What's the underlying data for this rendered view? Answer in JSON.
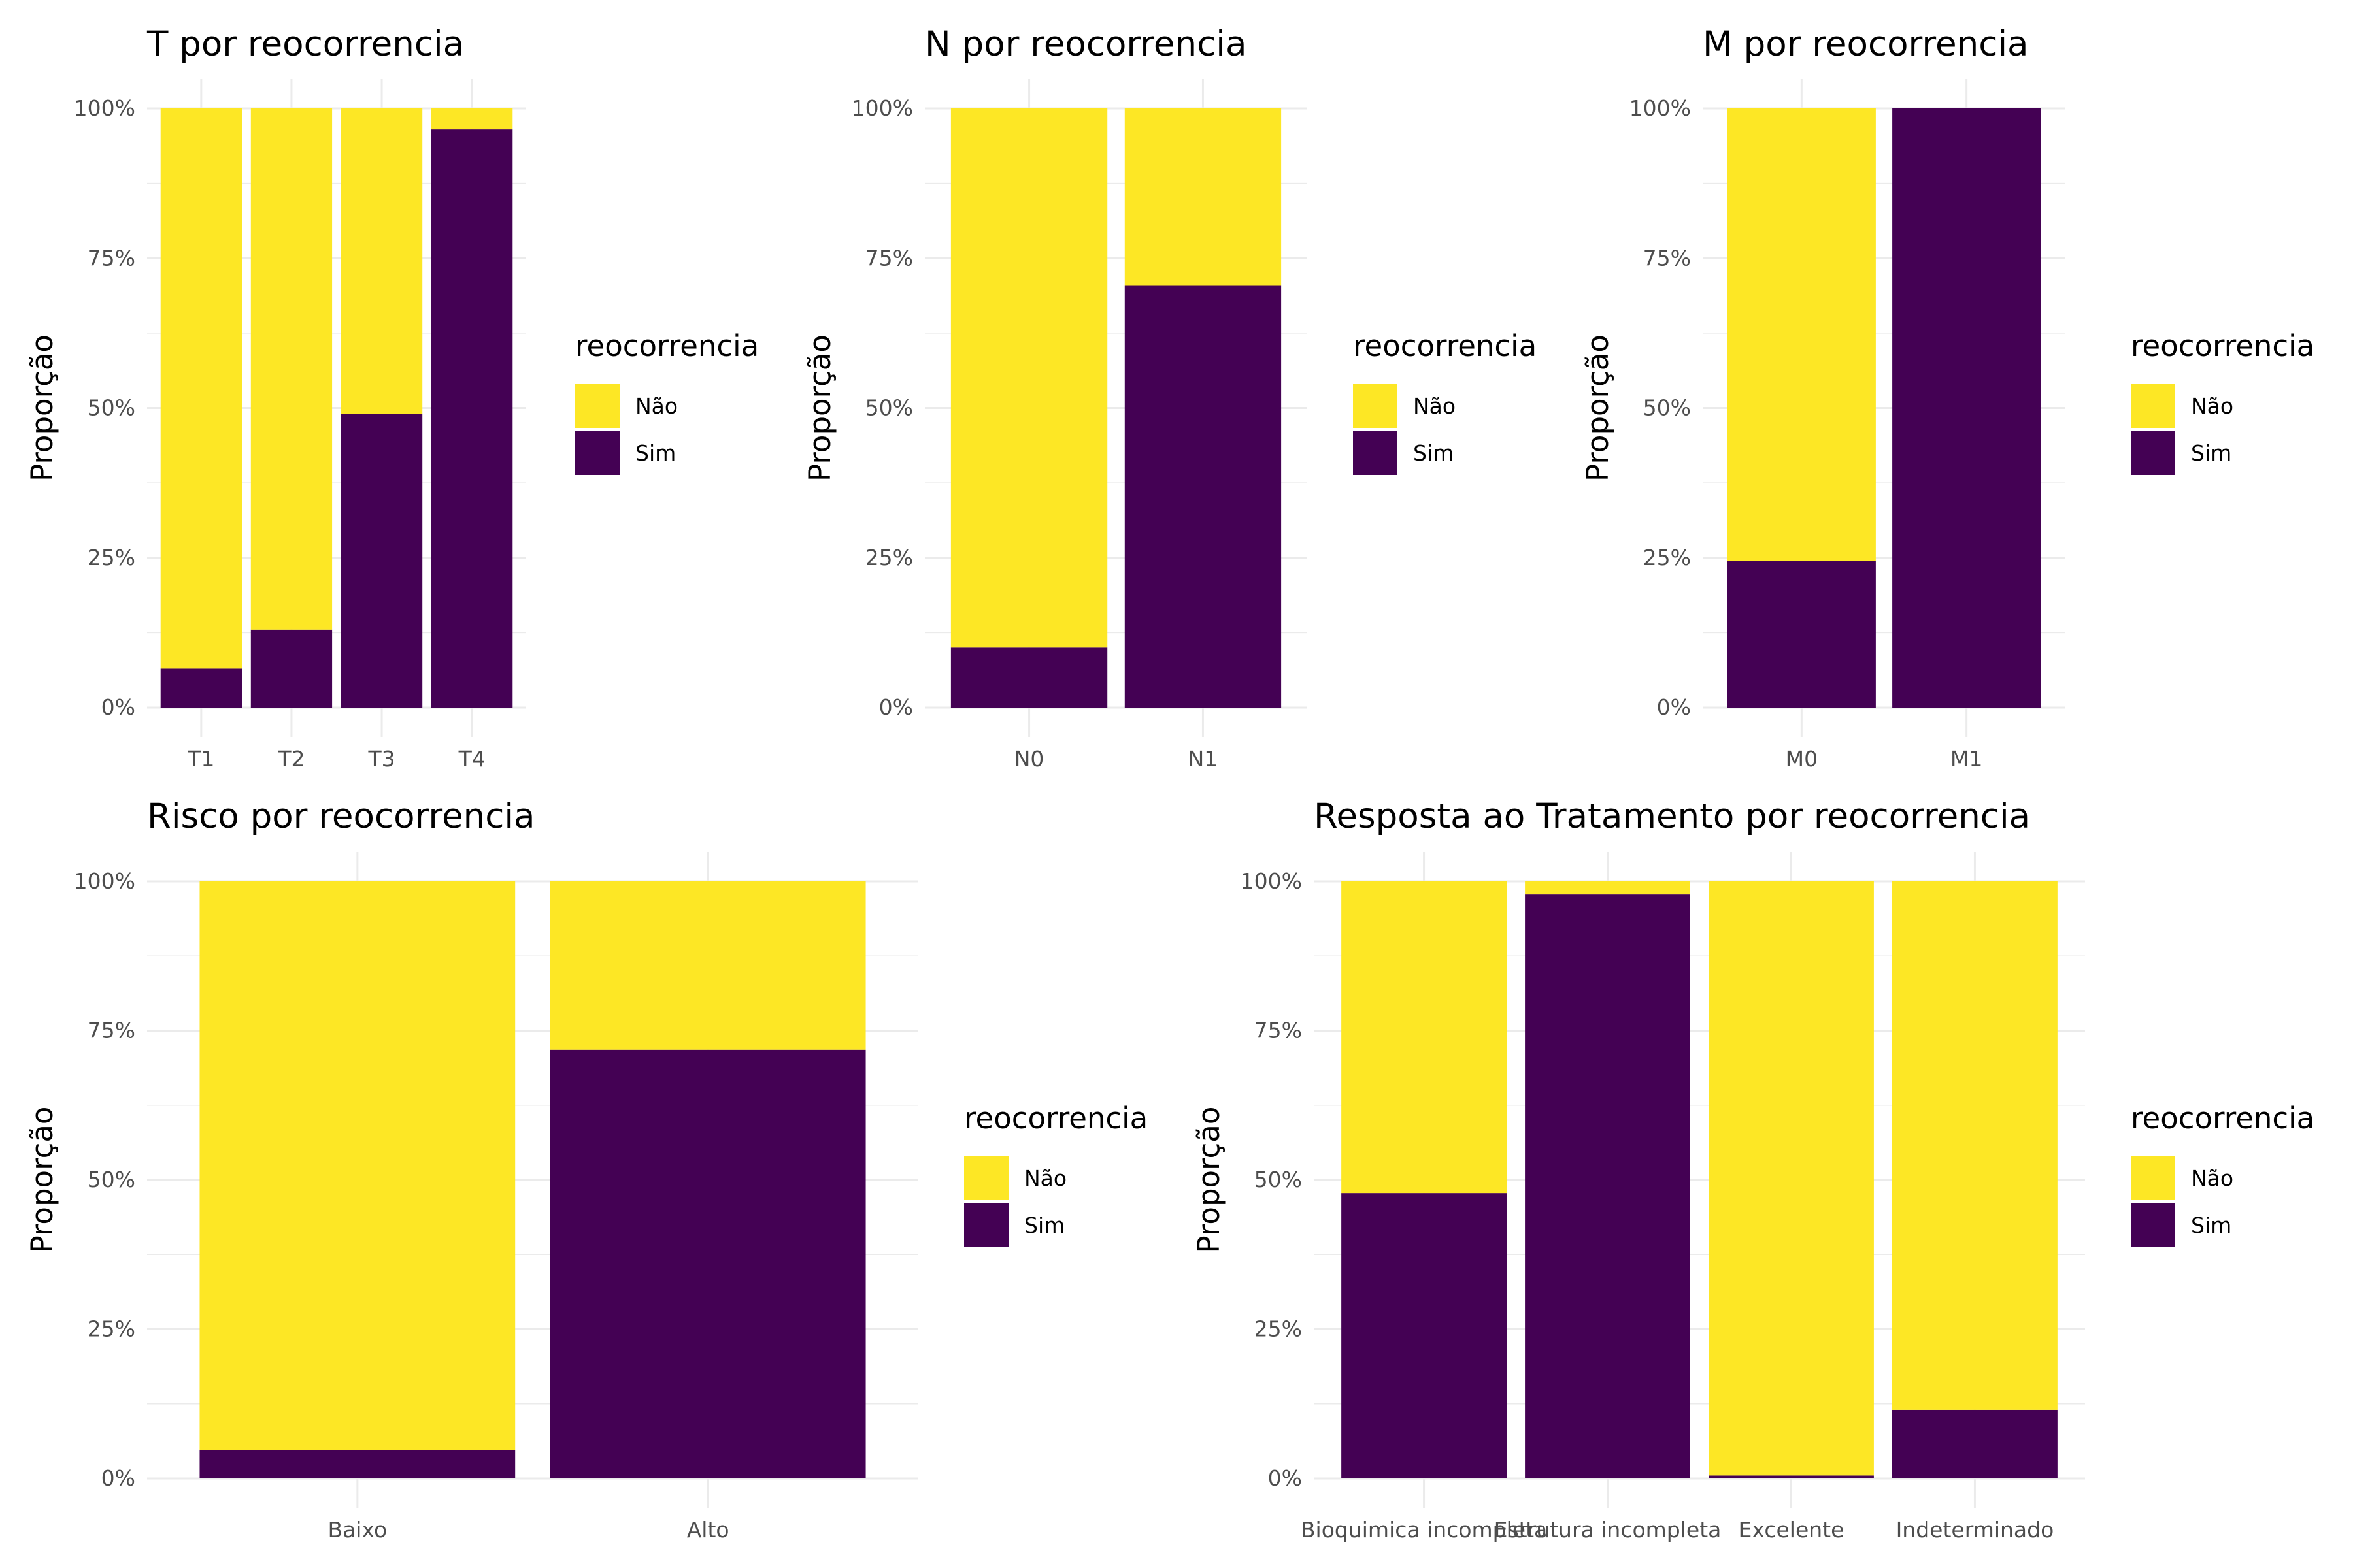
{
  "colors": {
    "Não": "#FDE725",
    "Sim": "#440154"
  },
  "legend": {
    "title": "reocorrencia",
    "items": [
      "Não",
      "Sim"
    ]
  },
  "y_axis": {
    "label": "Proporção",
    "ticks": [
      0,
      0.25,
      0.5,
      0.75,
      1
    ],
    "tick_labels": [
      "0%",
      "25%",
      "50%",
      "75%",
      "100%"
    ]
  },
  "chart_data": [
    {
      "type": "bar",
      "stacked": "fill",
      "title": "T por reocorrencia",
      "ylabel": "Proporção",
      "ylim": [
        0,
        1
      ],
      "categories": [
        "T1",
        "T2",
        "T3",
        "T4"
      ],
      "series": [
        {
          "name": "Sim",
          "values": [
            0.065,
            0.13,
            0.49,
            0.965
          ]
        },
        {
          "name": "Não",
          "values": [
            0.935,
            0.87,
            0.51,
            0.035
          ]
        }
      ]
    },
    {
      "type": "bar",
      "stacked": "fill",
      "title": "N por reocorrencia",
      "ylabel": "Proporção",
      "ylim": [
        0,
        1
      ],
      "categories": [
        "N0",
        "N1"
      ],
      "series": [
        {
          "name": "Sim",
          "values": [
            0.1,
            0.705
          ]
        },
        {
          "name": "Não",
          "values": [
            0.9,
            0.295
          ]
        }
      ]
    },
    {
      "type": "bar",
      "stacked": "fill",
      "title": "M por reocorrencia",
      "ylabel": "Proporção",
      "ylim": [
        0,
        1
      ],
      "categories": [
        "M0",
        "M1"
      ],
      "series": [
        {
          "name": "Sim",
          "values": [
            0.245,
            1.0
          ]
        },
        {
          "name": "Não",
          "values": [
            0.755,
            0.0
          ]
        }
      ]
    },
    {
      "type": "bar",
      "stacked": "fill",
      "title": "Risco por reocorrencia",
      "ylabel": "Proporção",
      "ylim": [
        0,
        1
      ],
      "categories": [
        "Baixo",
        "Alto"
      ],
      "series": [
        {
          "name": "Sim",
          "values": [
            0.048,
            0.718
          ]
        },
        {
          "name": "Não",
          "values": [
            0.952,
            0.282
          ]
        }
      ]
    },
    {
      "type": "bar",
      "stacked": "fill",
      "title": "Resposta ao Tratamento por reocorrencia",
      "ylabel": "Proporção",
      "ylim": [
        0,
        1
      ],
      "categories": [
        "Bioquimica incompleta",
        "Estrutura incompleta",
        "Excelente",
        "Indeterminado"
      ],
      "series": [
        {
          "name": "Sim",
          "values": [
            0.478,
            0.978,
            0.005,
            0.115
          ]
        },
        {
          "name": "Não",
          "values": [
            0.522,
            0.022,
            0.995,
            0.885
          ]
        }
      ]
    }
  ]
}
